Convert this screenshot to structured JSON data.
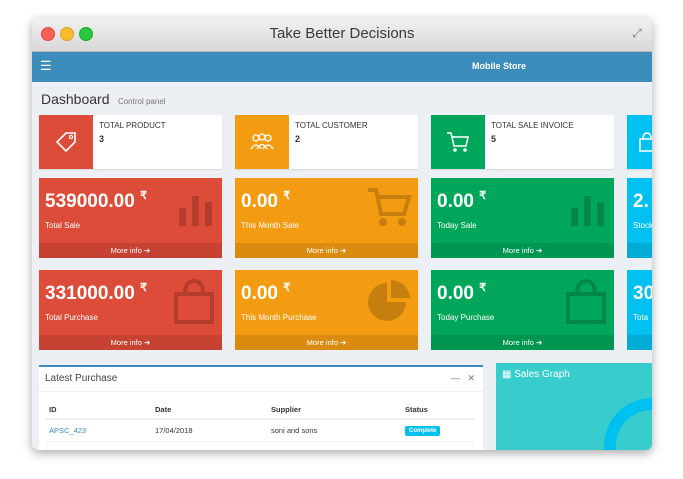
{
  "window": {
    "title": "Take Better Decisions"
  },
  "navbar": {
    "brand": "Mobile Store"
  },
  "page": {
    "title": "Dashboard",
    "subtitle": "Control panel"
  },
  "info_boxes": [
    {
      "label": "TOTAL PRODUCT",
      "value": "3",
      "icon": "tag-icon",
      "color": "#dd4b39"
    },
    {
      "label": "TOTAL CUSTOMER",
      "value": "2",
      "icon": "users-icon",
      "color": "#f39c12"
    },
    {
      "label": "TOTAL SALE INVOICE",
      "value": "5",
      "icon": "cart-icon",
      "color": "#00a65a"
    },
    {
      "label": "",
      "value": "",
      "icon": "bag-icon",
      "color": "#00c0ef"
    }
  ],
  "sales_boxes": [
    {
      "value": "539000.00",
      "currency": "₹",
      "caption": "Total Sale",
      "more": "More info",
      "icon": "bar-chart-icon"
    },
    {
      "value": "0.00",
      "currency": "₹",
      "caption": "This Month Sale",
      "more": "More info",
      "icon": "cart-icon"
    },
    {
      "value": "0.00",
      "currency": "₹",
      "caption": "Today Sale",
      "more": "More info",
      "icon": "bar-chart-icon"
    },
    {
      "value": "2.",
      "currency": "",
      "caption": "Stock",
      "more": "",
      "icon": ""
    }
  ],
  "purchase_boxes": [
    {
      "value": "331000.00",
      "currency": "₹",
      "caption": "Total Purchase",
      "more": "More info",
      "icon": "bag-icon"
    },
    {
      "value": "0.00",
      "currency": "₹",
      "caption": "This Month Purchase",
      "more": "More info",
      "icon": "pie-chart-icon"
    },
    {
      "value": "0.00",
      "currency": "₹",
      "caption": "Today Purchase",
      "more": "More info",
      "icon": "bag-icon"
    },
    {
      "value": "30",
      "currency": "",
      "caption": "Tota",
      "more": "",
      "icon": ""
    }
  ],
  "latest_purchase": {
    "title": "Latest Purchase",
    "columns": [
      "ID",
      "Date",
      "Supplier",
      "Status"
    ],
    "rows": [
      {
        "id": "APSC_423",
        "date": "17/04/2018",
        "supplier": "soni and sons",
        "status": "Complete"
      }
    ]
  },
  "sales_graph": {
    "title": "Sales Graph"
  },
  "colors": {
    "red": "#dd4b39",
    "orange": "#f39c12",
    "green": "#00a65a",
    "aqua": "#00c0ef",
    "primary": "#3c8dbc",
    "teal": "#39cccc"
  }
}
